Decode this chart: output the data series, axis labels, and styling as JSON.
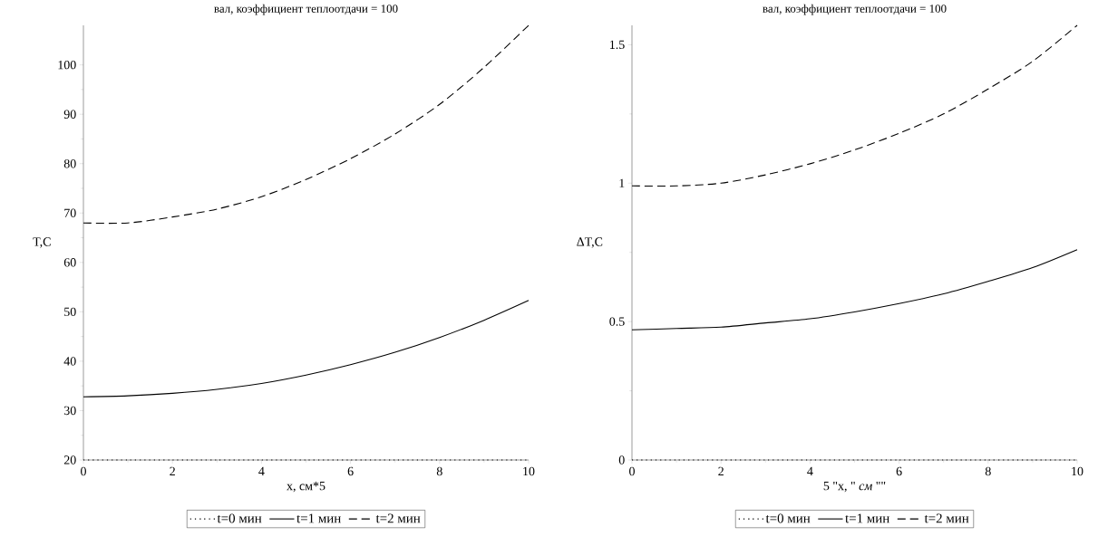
{
  "chart_data": [
    {
      "type": "line",
      "title": "вал, коэффициент теплоотдачи = 100",
      "xlabel": "x, см*5",
      "ylabel": "T,C",
      "x": [
        0,
        1,
        2,
        3,
        4,
        5,
        6,
        7,
        8,
        9,
        10
      ],
      "xlim": [
        0,
        10
      ],
      "xticks": [
        0,
        2,
        4,
        6,
        8,
        10
      ],
      "ylim": [
        20,
        108
      ],
      "yticks": [
        20,
        30,
        40,
        50,
        60,
        70,
        80,
        90,
        100
      ],
      "legend": "bottom",
      "grid": false,
      "series": [
        {
          "name": "t=0 мин",
          "color": "#000000",
          "line_style": "dotted",
          "values": [
            20,
            20,
            20,
            20,
            20,
            20,
            20,
            20,
            20,
            20,
            20
          ]
        },
        {
          "name": "t=1 мин",
          "color": "#000000",
          "line_style": "solid",
          "values": [
            32.8,
            33,
            33.5,
            34.3,
            35.5,
            37.2,
            39.3,
            41.8,
            44.8,
            48.3,
            52.3
          ]
        },
        {
          "name": "t=2 мин",
          "color": "#000000",
          "line_style": "dashed",
          "values": [
            68,
            68,
            69.2,
            70.8,
            73.3,
            76.8,
            81,
            86,
            92,
            99.5,
            108
          ]
        }
      ]
    },
    {
      "type": "line",
      "title": "вал, коэффициент теплоотдачи = 100",
      "xlabel": "5 \"x, \" *см* \"\"",
      "ylabel": "ΔT,C",
      "x": [
        0,
        1,
        2,
        3,
        4,
        5,
        6,
        7,
        8,
        9,
        10
      ],
      "xlim": [
        0,
        10
      ],
      "xticks": [
        0,
        2,
        4,
        6,
        8,
        10
      ],
      "ylim": [
        0,
        1.57
      ],
      "yticks": [
        0,
        0.5,
        1,
        1.5
      ],
      "legend": "bottom",
      "grid": false,
      "series": [
        {
          "name": "t=0 мин",
          "color": "#000000",
          "line_style": "dotted",
          "values": [
            0,
            0,
            0,
            0,
            0,
            0,
            0,
            0,
            0,
            0,
            0
          ]
        },
        {
          "name": "t=1 мин",
          "color": "#000000",
          "line_style": "solid",
          "values": [
            0.47,
            0.475,
            0.48,
            0.495,
            0.51,
            0.535,
            0.565,
            0.6,
            0.645,
            0.695,
            0.76
          ]
        },
        {
          "name": "t=2 мин",
          "color": "#000000",
          "line_style": "dashed",
          "values": [
            0.99,
            0.99,
            1.0,
            1.03,
            1.07,
            1.12,
            1.18,
            1.25,
            1.34,
            1.44,
            1.57
          ]
        }
      ]
    }
  ]
}
